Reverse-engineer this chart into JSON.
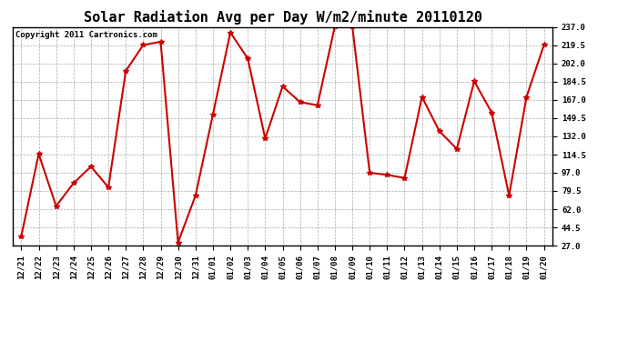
{
  "title": "Solar Radiation Avg per Day W/m2/minute 20110120",
  "copyright": "Copyright 2011 Cartronics.com",
  "labels": [
    "12/21",
    "12/22",
    "12/23",
    "12/24",
    "12/25",
    "12/26",
    "12/27",
    "12/28",
    "12/29",
    "12/30",
    "12/31",
    "01/01",
    "01/02",
    "01/03",
    "01/04",
    "01/05",
    "01/06",
    "01/07",
    "01/08",
    "01/09",
    "01/10",
    "01/11",
    "01/12",
    "01/13",
    "01/14",
    "01/15",
    "01/16",
    "01/17",
    "01/18",
    "01/19",
    "01/20"
  ],
  "values": [
    36,
    115,
    65,
    87,
    103,
    83,
    195,
    220,
    223,
    30,
    75,
    153,
    232,
    207,
    130,
    180,
    165,
    162,
    238,
    238,
    97,
    95,
    92,
    170,
    137,
    120,
    185,
    155,
    75,
    170,
    220
  ],
  "line_color": "#cc0000",
  "marker": "*",
  "marker_color": "#cc0000",
  "marker_size": 4,
  "line_width": 1.5,
  "bg_color": "#ffffff",
  "grid_color": "#aaaaaa",
  "ylim": [
    27.0,
    237.0
  ],
  "yticks": [
    27.0,
    44.5,
    62.0,
    79.5,
    97.0,
    114.5,
    132.0,
    149.5,
    167.0,
    184.5,
    202.0,
    219.5,
    237.0
  ],
  "title_fontsize": 11,
  "tick_fontsize": 6.5,
  "copyright_fontsize": 6.5
}
